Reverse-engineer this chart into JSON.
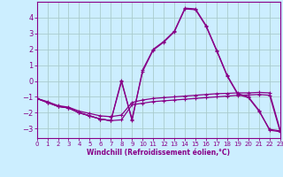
{
  "xlabel": "Windchill (Refroidissement éolien,°C)",
  "background_color": "#cceeff",
  "grid_color": "#aacccc",
  "line_color": "#880088",
  "x_ticks": [
    0,
    1,
    2,
    3,
    4,
    5,
    6,
    7,
    8,
    9,
    10,
    11,
    12,
    13,
    14,
    15,
    16,
    17,
    18,
    19,
    20,
    21,
    22,
    23
  ],
  "y_ticks": [
    -3,
    -2,
    -1,
    0,
    1,
    2,
    3,
    4
  ],
  "ylim": [
    -3.6,
    5.0
  ],
  "xlim": [
    0,
    23
  ],
  "lines": [
    {
      "x": [
        0,
        1,
        2,
        3,
        4,
        5,
        6,
        7,
        8,
        9,
        10,
        11,
        12,
        13,
        14,
        15,
        16,
        17,
        18,
        19,
        20,
        21,
        22,
        23
      ],
      "y": [
        -1.1,
        -1.3,
        -1.55,
        -1.65,
        -1.9,
        -2.05,
        -2.2,
        -2.25,
        -2.15,
        -1.35,
        -1.2,
        -1.1,
        -1.05,
        -1.0,
        -0.95,
        -0.9,
        -0.85,
        -0.8,
        -0.78,
        -0.75,
        -0.75,
        -0.72,
        -0.75,
        -3.1
      ]
    },
    {
      "x": [
        0,
        1,
        2,
        3,
        4,
        5,
        6,
        7,
        8,
        9,
        10,
        11,
        12,
        13,
        14,
        15,
        16,
        17,
        18,
        19,
        20,
        21,
        22,
        23
      ],
      "y": [
        -1.1,
        -1.35,
        -1.6,
        -1.7,
        -2.0,
        -2.2,
        -2.4,
        -2.5,
        -2.45,
        -1.5,
        -1.4,
        -1.3,
        -1.25,
        -1.2,
        -1.15,
        -1.1,
        -1.05,
        -1.0,
        -0.95,
        -0.9,
        -0.88,
        -0.85,
        -0.9,
        -3.2
      ]
    },
    {
      "x": [
        0,
        1,
        2,
        3,
        4,
        5,
        6,
        7,
        8,
        9,
        10,
        11,
        12,
        13,
        14,
        15,
        16,
        17,
        18,
        19,
        20,
        21,
        22,
        23
      ],
      "y": [
        -1.1,
        -1.35,
        -1.6,
        -1.7,
        -2.0,
        -2.2,
        -2.4,
        -2.5,
        0.05,
        -2.5,
        0.7,
        2.0,
        2.5,
        3.15,
        4.6,
        4.55,
        3.5,
        1.95,
        0.35,
        -0.8,
        -1.0,
        -1.85,
        -3.1,
        -3.2
      ]
    },
    {
      "x": [
        0,
        1,
        2,
        3,
        4,
        5,
        6,
        7,
        8,
        9,
        10,
        11,
        12,
        13,
        14,
        15,
        16,
        17,
        18,
        19,
        20,
        21,
        22,
        23
      ],
      "y": [
        -1.1,
        -1.35,
        -1.6,
        -1.7,
        -2.0,
        -2.2,
        -2.4,
        -2.5,
        -0.05,
        -2.4,
        0.6,
        1.95,
        2.45,
        3.1,
        4.55,
        4.5,
        3.45,
        1.9,
        0.3,
        -0.85,
        -1.05,
        -1.9,
        -3.05,
        -3.15
      ]
    }
  ]
}
